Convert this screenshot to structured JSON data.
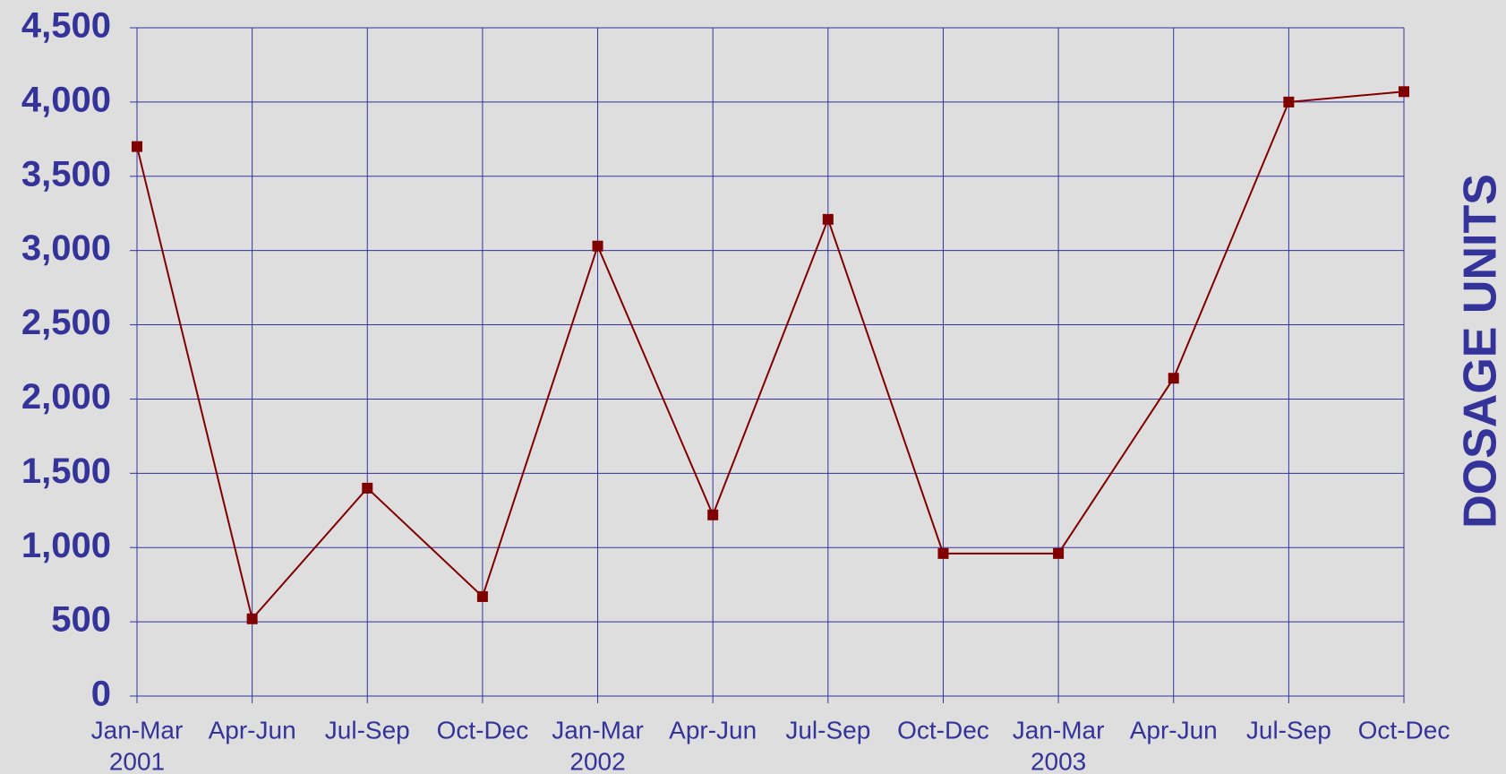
{
  "chart_data": {
    "type": "line",
    "y_axis_label": "DOSAGE UNITS",
    "categories": [
      "Jan-Mar",
      "Apr-Jun",
      "Jul-Sep",
      "Oct-Dec",
      "Jan-Mar",
      "Apr-Jun",
      "Jul-Sep",
      "Oct-Dec",
      "Jan-Mar",
      "Apr-Jun",
      "Jul-Sep",
      "Oct-Dec"
    ],
    "category_groups": [
      "2001",
      null,
      null,
      null,
      "2002",
      null,
      null,
      null,
      "2003",
      null,
      null,
      null
    ],
    "series": [
      {
        "color": "#800000",
        "values": [
          3700,
          520,
          1400,
          670,
          3030,
          1220,
          3210,
          960,
          960,
          2140,
          4000,
          4070
        ]
      }
    ],
    "ylim": [
      0,
      4500
    ],
    "yticks": [
      0,
      500,
      {
        "value": 1000,
        "label": "1,000"
      },
      {
        "value": 1500,
        "label": "1,500"
      },
      {
        "value": 2000,
        "label": "2,000"
      },
      {
        "value": 2500,
        "label": "2,500"
      },
      {
        "value": 3000,
        "label": "3,000"
      },
      {
        "value": 3500,
        "label": "3,500"
      },
      {
        "value": 4000,
        "label": "4,000"
      },
      {
        "value": 4500,
        "label": "4,500"
      }
    ],
    "grid": true
  }
}
